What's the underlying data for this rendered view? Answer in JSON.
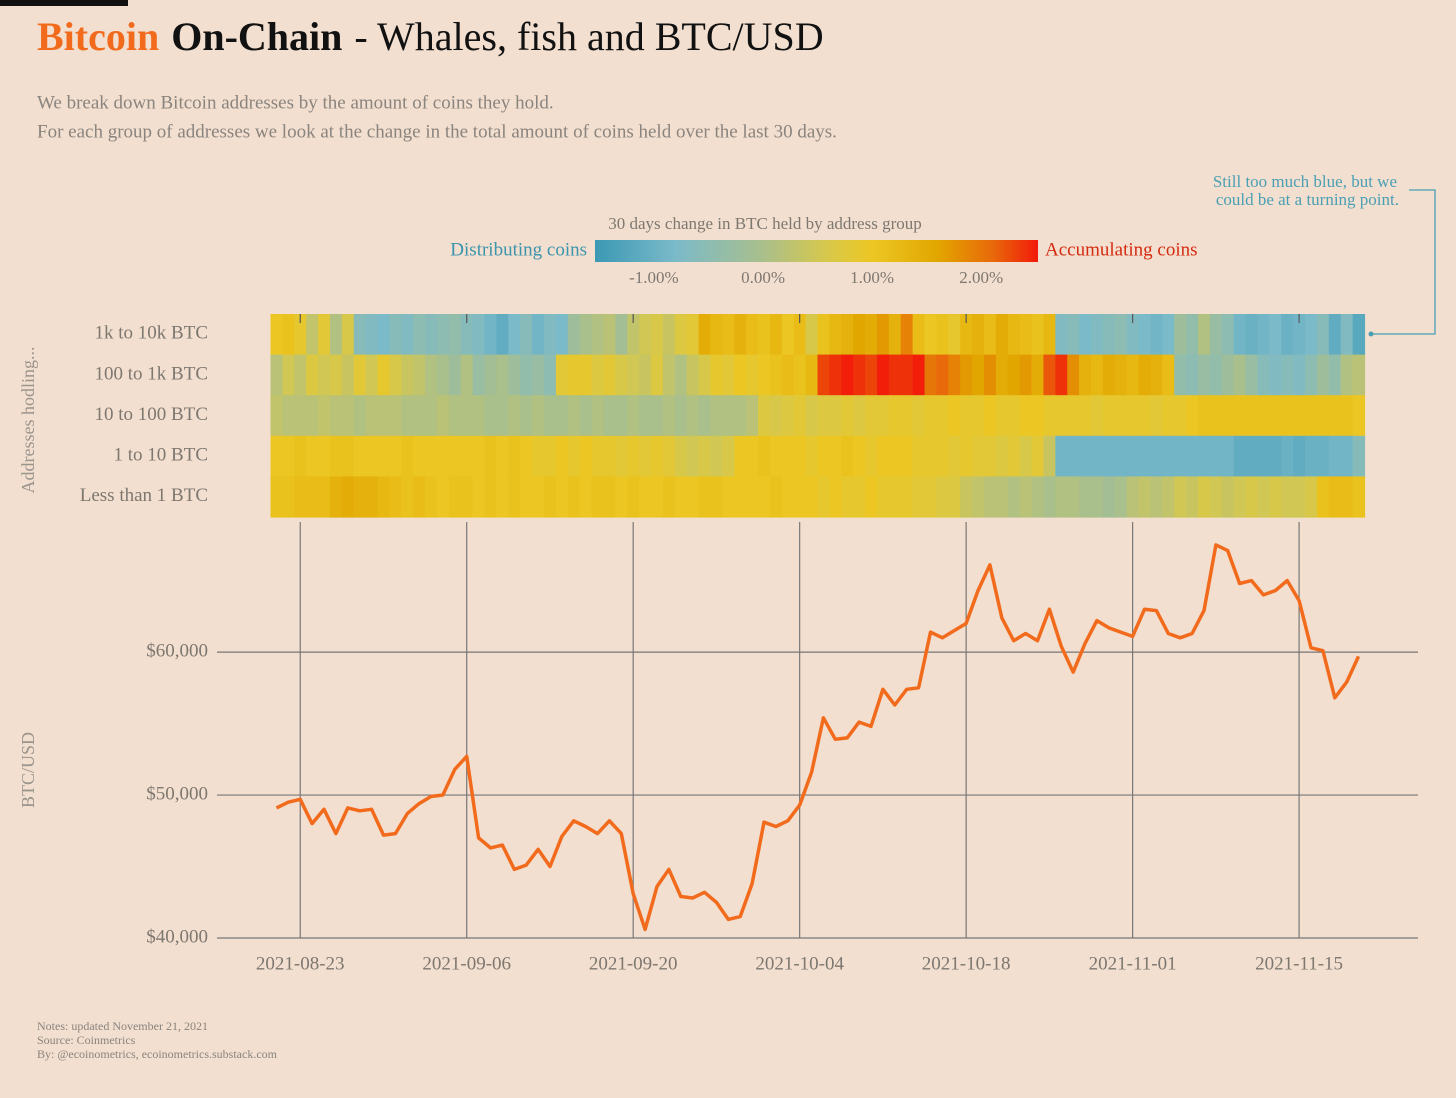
{
  "header": {
    "title": [
      "Bitcoin",
      "On-Chain",
      "- Whales, fish and BTC/USD"
    ],
    "subtitle": [
      "We break down Bitcoin addresses by the amount of coins they hold.",
      "For each group of addresses we look at the change in the total amount of coins held over the last 30 days."
    ]
  },
  "annotation": [
    "Still too much blue, but we",
    "could be at a turning point."
  ],
  "footer": [
    "Notes: updated November 21, 2021",
    "Source: Coinmetrics",
    "By: @ecoinometrics, ecoinometrics.substack.com"
  ],
  "chart_data": [
    {
      "type": "heatmap",
      "title": "30 days change in BTC held by address group",
      "ylabel": "Addresses hodling...",
      "low_label": "Distributing coins",
      "high_label": "Accumulating coins",
      "categories": [
        "1k to 10k BTC",
        "100 to 1k BTC",
        "10 to 100 BTC",
        "1 to 10 BTC",
        "Less than 1 BTC"
      ],
      "x": [
        "2021-08-21",
        "2021-08-22",
        "2021-08-23",
        "2021-08-24",
        "2021-08-25",
        "2021-08-26",
        "2021-08-27",
        "2021-08-28",
        "2021-08-29",
        "2021-08-30",
        "2021-08-31",
        "2021-09-01",
        "2021-09-02",
        "2021-09-03",
        "2021-09-04",
        "2021-09-05",
        "2021-09-06",
        "2021-09-07",
        "2021-09-08",
        "2021-09-09",
        "2021-09-10",
        "2021-09-11",
        "2021-09-12",
        "2021-09-13",
        "2021-09-14",
        "2021-09-15",
        "2021-09-16",
        "2021-09-17",
        "2021-09-18",
        "2021-09-19",
        "2021-09-20",
        "2021-09-21",
        "2021-09-22",
        "2021-09-23",
        "2021-09-24",
        "2021-09-25",
        "2021-09-26",
        "2021-09-27",
        "2021-09-28",
        "2021-09-29",
        "2021-09-30",
        "2021-10-01",
        "2021-10-02",
        "2021-10-03",
        "2021-10-04",
        "2021-10-05",
        "2021-10-06",
        "2021-10-07",
        "2021-10-08",
        "2021-10-09",
        "2021-10-10",
        "2021-10-11",
        "2021-10-12",
        "2021-10-13",
        "2021-10-14",
        "2021-10-15",
        "2021-10-16",
        "2021-10-17",
        "2021-10-18",
        "2021-10-19",
        "2021-10-20",
        "2021-10-21",
        "2021-10-22",
        "2021-10-23",
        "2021-10-24",
        "2021-10-25",
        "2021-10-26",
        "2021-10-27",
        "2021-10-28",
        "2021-10-29",
        "2021-10-30",
        "2021-10-31",
        "2021-11-01",
        "2021-11-02",
        "2021-11-03",
        "2021-11-04",
        "2021-11-05",
        "2021-11-06",
        "2021-11-07",
        "2021-11-08",
        "2021-11-09",
        "2021-11-10",
        "2021-11-11",
        "2021-11-12",
        "2021-11-13",
        "2021-11-14",
        "2021-11-15",
        "2021-11-16",
        "2021-11-17",
        "2021-11-18",
        "2021-11-19",
        "2021-11-20"
      ],
      "z": [
        [
          1.0,
          1.1,
          0.9,
          0.3,
          0.8,
          0.1,
          0.6,
          -0.6,
          -0.7,
          -0.8,
          -0.6,
          -0.7,
          -0.5,
          -0.6,
          -0.5,
          -0.4,
          -0.6,
          -0.7,
          -0.9,
          -1.1,
          -0.8,
          -0.6,
          -0.9,
          -0.7,
          -0.8,
          -0.2,
          0.0,
          0.1,
          0.2,
          -0.1,
          0.3,
          0.5,
          0.6,
          0.4,
          0.7,
          0.8,
          1.5,
          1.3,
          1.2,
          1.4,
          1.2,
          1.1,
          1.3,
          1.0,
          1.2,
          0.6,
          1.1,
          1.3,
          1.4,
          1.6,
          1.5,
          1.7,
          1.4,
          1.9,
          1.2,
          1.0,
          1.1,
          0.9,
          1.3,
          1.4,
          1.2,
          1.5,
          1.3,
          1.2,
          1.1,
          1.3,
          -0.7,
          -0.6,
          -0.8,
          -0.7,
          -0.6,
          -0.5,
          -0.7,
          -0.8,
          -0.9,
          -0.8,
          -0.2,
          -0.4,
          0.1,
          -0.3,
          -0.5,
          -0.9,
          -1.0,
          -0.9,
          -0.8,
          -1.0,
          -0.9,
          -0.8,
          -0.6,
          -1.1,
          -0.7,
          -1.2
        ],
        [
          0.2,
          0.5,
          0.3,
          0.7,
          0.5,
          0.6,
          0.4,
          0.8,
          0.5,
          0.9,
          0.6,
          0.4,
          0.3,
          0.1,
          0.0,
          -0.2,
          0.1,
          -0.3,
          -0.1,
          0.0,
          -0.2,
          -0.4,
          -0.3,
          -0.5,
          0.8,
          0.9,
          0.9,
          0.7,
          0.8,
          0.6,
          0.5,
          0.4,
          0.7,
          0.3,
          0.1,
          0.4,
          0.6,
          0.9,
          0.8,
          1.0,
          0.9,
          1.0,
          1.1,
          1.2,
          1.1,
          1.3,
          2.3,
          2.4,
          2.5,
          2.4,
          2.3,
          2.5,
          2.4,
          2.4,
          2.5,
          2.0,
          2.1,
          1.9,
          1.7,
          1.6,
          1.8,
          1.5,
          1.6,
          1.7,
          1.5,
          2.2,
          2.4,
          1.8,
          1.4,
          1.3,
          1.5,
          1.4,
          1.3,
          1.5,
          1.4,
          1.2,
          -0.4,
          -0.5,
          -0.3,
          -0.4,
          -0.2,
          0.0,
          -0.3,
          -0.6,
          -0.7,
          -0.6,
          -0.7,
          -0.5,
          -0.2,
          -0.4,
          0.1,
          0.2
        ],
        [
          0.3,
          0.2,
          0.2,
          0.2,
          0.3,
          0.2,
          0.2,
          0.1,
          0.2,
          0.2,
          0.2,
          0.1,
          0.1,
          0.1,
          0.2,
          0.1,
          0.1,
          0.1,
          0.0,
          0.0,
          0.1,
          0.0,
          0.1,
          0.0,
          0.0,
          0.1,
          0.0,
          0.1,
          0.0,
          0.0,
          0.1,
          0.0,
          0.0,
          0.1,
          0.0,
          0.1,
          0.0,
          0.1,
          0.1,
          0.1,
          0.2,
          0.7,
          0.6,
          0.7,
          0.8,
          0.6,
          0.7,
          0.7,
          0.8,
          0.7,
          0.8,
          0.8,
          0.9,
          0.9,
          0.8,
          0.9,
          0.9,
          1.0,
          0.9,
          0.9,
          1.0,
          0.9,
          0.9,
          1.0,
          1.0,
          0.9,
          0.9,
          0.9,
          0.9,
          0.8,
          0.9,
          0.9,
          0.9,
          0.9,
          0.8,
          0.9,
          0.9,
          1.0,
          1.1,
          1.1,
          1.1,
          1.1,
          1.1,
          1.1,
          1.1,
          1.1,
          1.1,
          1.1,
          1.1,
          1.1,
          1.1,
          1.0
        ],
        [
          1.0,
          1.0,
          1.1,
          1.0,
          1.0,
          1.1,
          1.1,
          1.0,
          1.0,
          1.0,
          1.0,
          1.1,
          1.0,
          1.0,
          1.0,
          1.0,
          1.0,
          1.0,
          1.1,
          1.0,
          1.1,
          1.0,
          0.9,
          0.9,
          1.0,
          0.9,
          1.0,
          0.9,
          0.9,
          0.8,
          0.9,
          0.8,
          0.9,
          0.8,
          0.6,
          0.5,
          0.6,
          0.5,
          0.6,
          1.0,
          1.0,
          1.1,
          1.0,
          1.0,
          1.0,
          0.9,
          1.0,
          1.0,
          1.1,
          1.0,
          0.9,
          1.0,
          1.0,
          1.0,
          0.9,
          0.9,
          0.9,
          0.8,
          0.9,
          0.8,
          0.8,
          0.7,
          0.8,
          0.6,
          0.8,
          0.4,
          -0.9,
          -0.9,
          -0.9,
          -0.9,
          -0.9,
          -0.9,
          -0.9,
          -0.9,
          -0.9,
          -0.9,
          -0.9,
          -0.9,
          -0.9,
          -0.9,
          -0.9,
          -1.1,
          -1.1,
          -1.1,
          -1.1,
          -1.0,
          -1.1,
          -1.0,
          -1.0,
          -0.9,
          -0.9,
          -0.6
        ],
        [
          1.1,
          1.1,
          1.2,
          1.2,
          1.2,
          1.4,
          1.5,
          1.4,
          1.4,
          1.3,
          1.2,
          1.1,
          1.2,
          1.1,
          1.0,
          1.1,
          1.1,
          1.0,
          1.1,
          1.0,
          1.1,
          1.0,
          1.0,
          1.1,
          1.0,
          1.1,
          1.0,
          1.1,
          1.1,
          1.0,
          1.1,
          1.0,
          1.0,
          1.1,
          1.0,
          1.0,
          1.1,
          1.1,
          1.0,
          1.0,
          1.0,
          1.0,
          1.1,
          1.0,
          1.0,
          1.0,
          0.9,
          1.0,
          0.9,
          0.9,
          1.0,
          0.9,
          0.9,
          0.9,
          0.8,
          0.8,
          0.7,
          0.7,
          0.4,
          0.3,
          0.2,
          0.2,
          0.1,
          0.2,
          0.1,
          0.0,
          0.1,
          0.1,
          0.0,
          0.0,
          -0.1,
          0.0,
          0.2,
          0.3,
          0.2,
          0.3,
          0.5,
          0.4,
          0.6,
          0.5,
          0.4,
          0.5,
          0.6,
          0.5,
          0.6,
          0.5,
          0.5,
          0.6,
          1.1,
          1.2,
          1.2,
          1.1
        ]
      ],
      "clim": [
        -1.54,
        2.52
      ],
      "colorscale": [
        [
          -1.54,
          "#3b98b4"
        ],
        [
          -0.8,
          "#7bbac9"
        ],
        [
          0,
          "#a9bf8c"
        ],
        [
          0.6,
          "#d8c84a"
        ],
        [
          1.0,
          "#ecc724"
        ],
        [
          1.6,
          "#e2a600"
        ],
        [
          2.1,
          "#e86a0a"
        ],
        [
          2.52,
          "#f21a0a"
        ]
      ],
      "cticks": [
        {
          "value": -1,
          "label": "-1.00%"
        },
        {
          "value": 0,
          "label": "0.00%"
        },
        {
          "value": 1,
          "label": "1.00%"
        },
        {
          "value": 2,
          "label": "2.00%"
        }
      ]
    },
    {
      "type": "line",
      "ylabel": "BTC/USD",
      "color": "#f26b1d",
      "x": [
        "2021-08-21",
        "2021-08-22",
        "2021-08-23",
        "2021-08-24",
        "2021-08-25",
        "2021-08-26",
        "2021-08-27",
        "2021-08-28",
        "2021-08-29",
        "2021-08-30",
        "2021-08-31",
        "2021-09-01",
        "2021-09-02",
        "2021-09-03",
        "2021-09-04",
        "2021-09-05",
        "2021-09-06",
        "2021-09-07",
        "2021-09-08",
        "2021-09-09",
        "2021-09-10",
        "2021-09-11",
        "2021-09-12",
        "2021-09-13",
        "2021-09-14",
        "2021-09-15",
        "2021-09-16",
        "2021-09-17",
        "2021-09-18",
        "2021-09-19",
        "2021-09-20",
        "2021-09-21",
        "2021-09-22",
        "2021-09-23",
        "2021-09-24",
        "2021-09-25",
        "2021-09-26",
        "2021-09-27",
        "2021-09-28",
        "2021-09-29",
        "2021-09-30",
        "2021-10-01",
        "2021-10-02",
        "2021-10-03",
        "2021-10-04",
        "2021-10-05",
        "2021-10-06",
        "2021-10-07",
        "2021-10-08",
        "2021-10-09",
        "2021-10-10",
        "2021-10-11",
        "2021-10-12",
        "2021-10-13",
        "2021-10-14",
        "2021-10-15",
        "2021-10-16",
        "2021-10-17",
        "2021-10-18",
        "2021-10-19",
        "2021-10-20",
        "2021-10-21",
        "2021-10-22",
        "2021-10-23",
        "2021-10-24",
        "2021-10-25",
        "2021-10-26",
        "2021-10-27",
        "2021-10-28",
        "2021-10-29",
        "2021-10-30",
        "2021-10-31",
        "2021-11-01",
        "2021-11-02",
        "2021-11-03",
        "2021-11-04",
        "2021-11-05",
        "2021-11-06",
        "2021-11-07",
        "2021-11-08",
        "2021-11-09",
        "2021-11-10",
        "2021-11-11",
        "2021-11-12",
        "2021-11-13",
        "2021-11-14",
        "2021-11-15",
        "2021-11-16",
        "2021-11-17",
        "2021-11-18",
        "2021-11-19",
        "2021-11-20"
      ],
      "values": [
        49100,
        49500,
        49700,
        48000,
        49000,
        47300,
        49100,
        48900,
        49000,
        47200,
        47300,
        48700,
        49400,
        49900,
        50000,
        51800,
        52700,
        47000,
        46300,
        46500,
        44800,
        45100,
        46200,
        45000,
        47100,
        48200,
        47800,
        47300,
        48200,
        47300,
        43100,
        40600,
        43600,
        44800,
        42900,
        42800,
        43200,
        42500,
        41300,
        41500,
        43800,
        48100,
        47800,
        48200,
        49300,
        51600,
        55400,
        53900,
        54000,
        55100,
        54800,
        57400,
        56300,
        57400,
        57500,
        61400,
        61000,
        61500,
        62000,
        64300,
        66100,
        62400,
        60800,
        61300,
        60800,
        63000,
        60400,
        58600,
        60600,
        62200,
        61700,
        61400,
        61100,
        63000,
        62900,
        61300,
        61000,
        61300,
        62900,
        67500,
        67100,
        64800,
        65000,
        64000,
        64300,
        65000,
        63600,
        60300,
        60100,
        56800,
        57900,
        59700
      ],
      "xlim": [
        "2021-08-16",
        "2021-11-25"
      ],
      "xticks": [
        "2021-08-23",
        "2021-09-06",
        "2021-09-20",
        "2021-10-04",
        "2021-10-18",
        "2021-11-01",
        "2021-11-15"
      ],
      "ylim": [
        40000,
        69100
      ],
      "yticks": [
        {
          "value": 40000,
          "label": "$40,000"
        },
        {
          "value": 50000,
          "label": "$50,000"
        },
        {
          "value": 60000,
          "label": "$60,000"
        }
      ],
      "grid": true
    }
  ]
}
